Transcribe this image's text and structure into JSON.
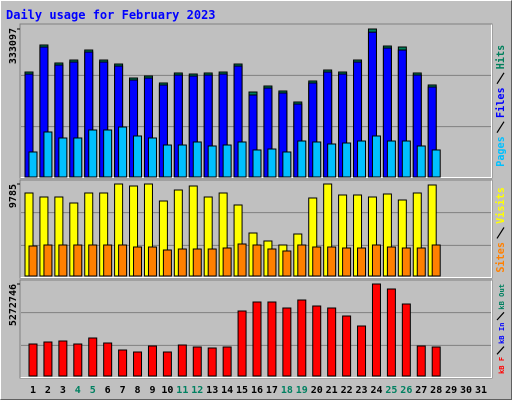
{
  "chart_data": [
    {
      "type": "bar",
      "title": "Daily usage for February 2023",
      "ylim": [
        0,
        333097
      ],
      "yticks": [
        333097
      ],
      "series": [
        {
          "name": "Pages",
          "color": "#00c0ff",
          "values": [
            56300,
            101300,
            87800,
            87800,
            105800,
            105800,
            112500,
            92300,
            87800,
            72000,
            72000,
            78800,
            69800,
            72000,
            78800,
            60800,
            63000,
            56300,
            81000,
            78800,
            74300,
            76500,
            81000,
            92300,
            81000,
            81000,
            69800,
            60800,
            null,
            null,
            null
          ]
        },
        {
          "name": "Files",
          "color": "#0000ff",
          "values": [
            231800,
            292600,
            252100,
            258800,
            281300,
            258800,
            249800,
            218300,
            222800,
            207100,
            229600,
            227300,
            229600,
            231800,
            249800,
            184600,
            200300,
            189100,
            164300,
            211600,
            236300,
            231800,
            258800,
            326000,
            290300,
            285800,
            229600,
            202600,
            null,
            null,
            null
          ]
        },
        {
          "name": "Hits",
          "color": "#00805c",
          "values": [
            236300,
            297100,
            256600,
            263300,
            285800,
            263300,
            254300,
            222800,
            227300,
            211600,
            234100,
            231800,
            234100,
            236300,
            254300,
            191300,
            204800,
            193600,
            168800,
            216100,
            240800,
            236300,
            263300,
            333097,
            294800,
            292600,
            234100,
            207100,
            null,
            null,
            null
          ]
        }
      ]
    },
    {
      "type": "bar",
      "ylim": [
        0,
        9785
      ],
      "yticks": [
        9785
      ],
      "series": [
        {
          "name": "Sites",
          "color": "#ff8000",
          "values": [
            3191,
            3297,
            3297,
            3297,
            3297,
            3297,
            3297,
            3084,
            3084,
            2765,
            2872,
            2872,
            2872,
            2978,
            3404,
            3297,
            2872,
            2659,
            3297,
            3084,
            3084,
            2978,
            2978,
            3297,
            3084,
            2978,
            2978,
            3297,
            null,
            null,
            null
          ]
        },
        {
          "name": "Visits",
          "color": "#ffff00",
          "values": [
            8828,
            8402,
            8402,
            7764,
            8828,
            8828,
            9785,
            9572,
            9785,
            7977,
            9147,
            9572,
            8402,
            8828,
            7552,
            4573,
            3723,
            3297,
            4467,
            8296,
            9785,
            8615,
            8615,
            8402,
            8722,
            8083,
            8828,
            9679,
            null,
            null,
            null
          ]
        }
      ]
    },
    {
      "type": "bar",
      "ylim": [
        0,
        5272746
      ],
      "yticks": [
        5272746
      ],
      "categories": [
        "1",
        "2",
        "3",
        "4",
        "5",
        "6",
        "7",
        "8",
        "9",
        "10",
        "11",
        "12",
        "13",
        "14",
        "15",
        "16",
        "17",
        "18",
        "19",
        "20",
        "21",
        "22",
        "23",
        "24",
        "25",
        "26",
        "27",
        "28",
        "29",
        "30",
        "31"
      ],
      "category_color": "#000000",
      "highlight_color": "#008060",
      "highlight_categories": [
        3,
        4,
        10,
        11,
        17,
        18,
        24,
        25
      ],
      "series": [
        {
          "name": "kB F",
          "color": "#ff0000",
          "values": [
            1834000,
            1948600,
            2005900,
            1834000,
            2177900,
            1891300,
            1490100,
            1375500,
            1719400,
            1375500,
            1776700,
            1662000,
            1604700,
            1662000,
            3725300,
            4241100,
            4241100,
            3897200,
            4355700,
            4011800,
            3897200,
            3438700,
            2865600,
            5272746,
            4986100,
            4126500,
            1719400,
            1662000,
            null,
            null,
            null
          ]
        },
        {
          "name": "kB In",
          "color": "#0000ff"
        },
        {
          "name": "kB Out",
          "color": "#008060"
        }
      ]
    }
  ]
}
